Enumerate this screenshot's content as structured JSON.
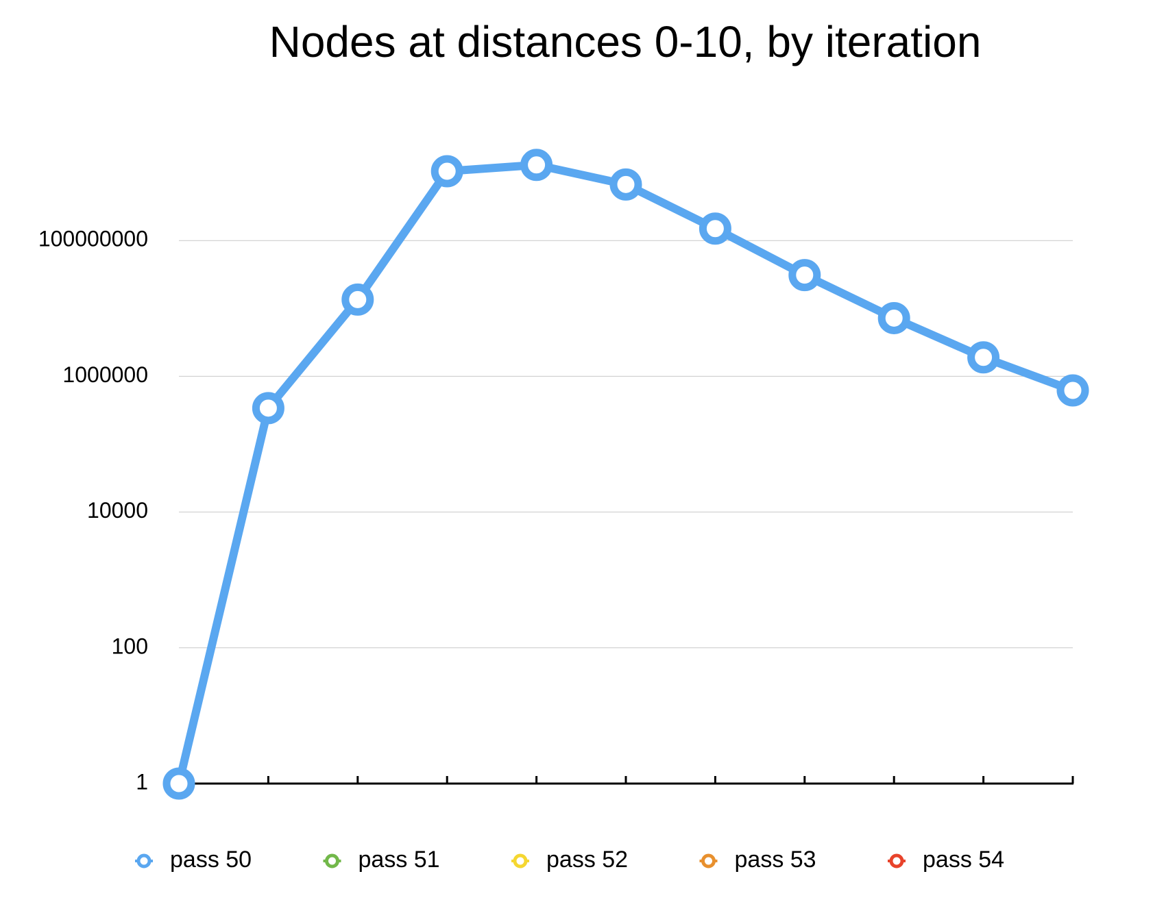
{
  "chart_data": {
    "type": "line",
    "title": "Nodes at distances 0-10, by iteration",
    "categories": [
      null,
      null,
      null,
      null,
      null,
      null,
      null,
      null,
      null,
      null,
      null
    ],
    "series": [
      {
        "name": "pass 50",
        "color": "#5aa7f0",
        "values": [
          1,
          340000,
          13500000,
          1050000000,
          1300000000,
          670000000,
          150000000,
          31000000,
          7200000,
          1900000,
          620000
        ]
      },
      {
        "name": "pass 51",
        "color": "#72b84a",
        "values": [
          null,
          null,
          null,
          null,
          null,
          null,
          null,
          null,
          null,
          null,
          null
        ]
      },
      {
        "name": "pass 52",
        "color": "#f5d731",
        "values": [
          null,
          null,
          null,
          null,
          null,
          null,
          null,
          null,
          null,
          null,
          null
        ]
      },
      {
        "name": "pass 53",
        "color": "#e8902e",
        "values": [
          null,
          null,
          null,
          null,
          null,
          null,
          null,
          null,
          null,
          null,
          null
        ]
      },
      {
        "name": "pass 54",
        "color": "#e8432b",
        "values": [
          null,
          null,
          null,
          null,
          null,
          null,
          null,
          null,
          null,
          null,
          null
        ]
      }
    ],
    "log_scale": true,
    "grid": true,
    "legend": "bottom",
    "ylim": [
      1,
      10000000000
    ],
    "yticks": [
      1,
      100,
      10000,
      1000000,
      100000000
    ]
  }
}
